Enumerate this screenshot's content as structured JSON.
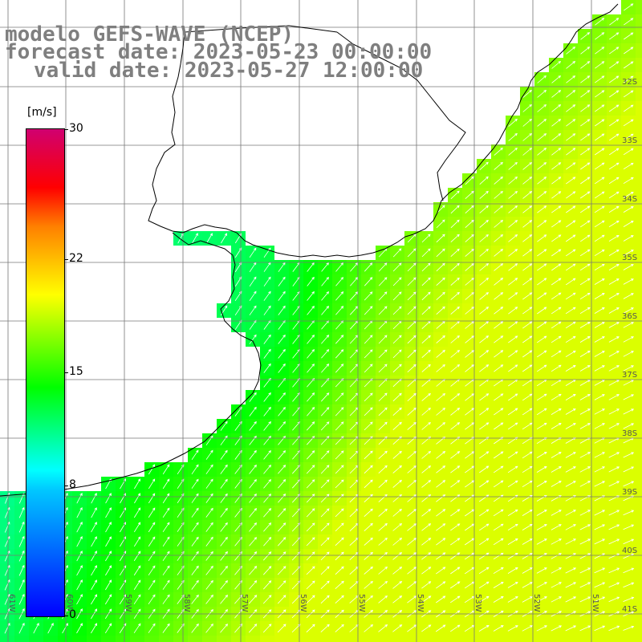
{
  "map": {
    "title_model": "modelo GEFS-WAVE (NCEP)",
    "title_forecast": "forecast date: 2023-05-23 00:00:00",
    "title_valid": "valid date: 2023-05-27 12:00:00",
    "variable": "wind speed and direction",
    "colorbar": {
      "unit": "[m/s]",
      "ticks": [
        "30",
        "22",
        "15",
        "8",
        "0"
      ],
      "tick_values": [
        30,
        22,
        15,
        8,
        0
      ],
      "range": [
        0,
        30
      ]
    },
    "lat_labels": [
      "32S",
      "33S",
      "34S",
      "35S",
      "36S",
      "37S",
      "38S",
      "39S",
      "40S",
      "41S"
    ],
    "lon_labels": [
      "61W",
      "60W",
      "59W",
      "58W",
      "57W",
      "56W",
      "55W",
      "54W",
      "53W",
      "52W",
      "51W"
    ],
    "colors": {
      "land": "#ffffff",
      "grid": "#777777",
      "coast": "#000000",
      "arrow": "#ffffff",
      "title": "#7f7f7f"
    }
  }
}
